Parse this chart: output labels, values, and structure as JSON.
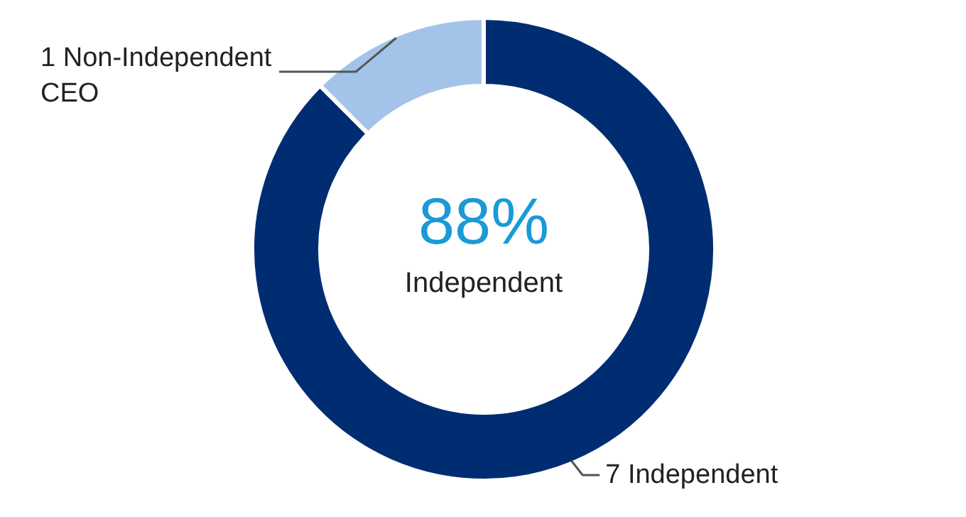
{
  "chart_data": {
    "type": "donut",
    "categories": [
      "7 Independent",
      "1 Non-Independent CEO"
    ],
    "values": [
      7,
      1
    ],
    "colors": [
      "#002d72",
      "#a3c4e8"
    ],
    "annotations": [
      "88%",
      "Independent"
    ]
  }
}
